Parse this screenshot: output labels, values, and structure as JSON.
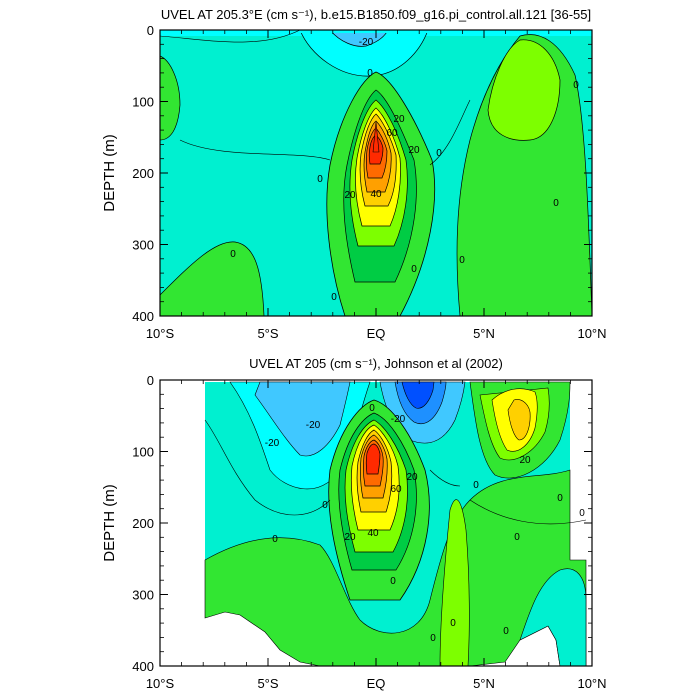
{
  "colors": {
    "background_cyan": "#00ffff",
    "aqua": "#00f0d0",
    "green_light": "#7dff00",
    "green": "#32e632",
    "green_mid": "#00cc44",
    "yellow": "#ffff00",
    "gold": "#ffd000",
    "orange": "#ffa000",
    "orange_red": "#ff6a00",
    "red": "#ff2a00",
    "blue_light": "#40c8ff",
    "blue": "#1e90ff",
    "blue_deep": "#0050ff"
  },
  "chart_data": [
    {
      "type": "contour",
      "title": "UVEL AT 205.3°E (cm s⁻¹), b.e15.B1850.f09_g16.pi_control.all.121 [36-55]",
      "ylabel": "DEPTH (m)",
      "xlabel": "",
      "x_ticks": [
        "10°S",
        "5°S",
        "EQ",
        "5°N",
        "10°N"
      ],
      "x_tick_values": [
        -10,
        -5,
        0,
        5,
        10
      ],
      "y_ticks": [
        "0",
        "100",
        "200",
        "300",
        "400"
      ],
      "y_tick_values": [
        0,
        100,
        200,
        300,
        400
      ],
      "xlim": [
        -10,
        10
      ],
      "ylim": [
        400,
        0
      ],
      "contour_labels": [
        "-20",
        "0",
        "0",
        "0",
        "0",
        "0",
        "0",
        "0",
        "0",
        "0",
        "20",
        "20",
        "20",
        "40",
        "60"
      ],
      "core_max_approx": 80,
      "core_depth_m": 145,
      "core_lat": 0
    },
    {
      "type": "contour",
      "title": "UVEL AT 205 (cm s⁻¹), Johnson et al (2002)",
      "ylabel": "DEPTH (m)",
      "xlabel": "",
      "x_ticks": [
        "10°S",
        "5°S",
        "EQ",
        "5°N",
        "10°N"
      ],
      "x_tick_values": [
        -10,
        -5,
        0,
        5,
        10
      ],
      "y_ticks": [
        "0",
        "100",
        "200",
        "300",
        "400"
      ],
      "y_tick_values": [
        0,
        100,
        200,
        300,
        400
      ],
      "xlim": [
        -10,
        10
      ],
      "ylim": [
        400,
        0
      ],
      "contour_labels": [
        "-20",
        "-20",
        "-20",
        "0",
        "0",
        "0",
        "0",
        "0",
        "0",
        "0",
        "0",
        "0",
        "0",
        "0",
        "20",
        "20",
        "20",
        "40",
        "60"
      ],
      "core_max_approx": 80,
      "core_depth_m": 135,
      "core_lat": 0
    }
  ]
}
